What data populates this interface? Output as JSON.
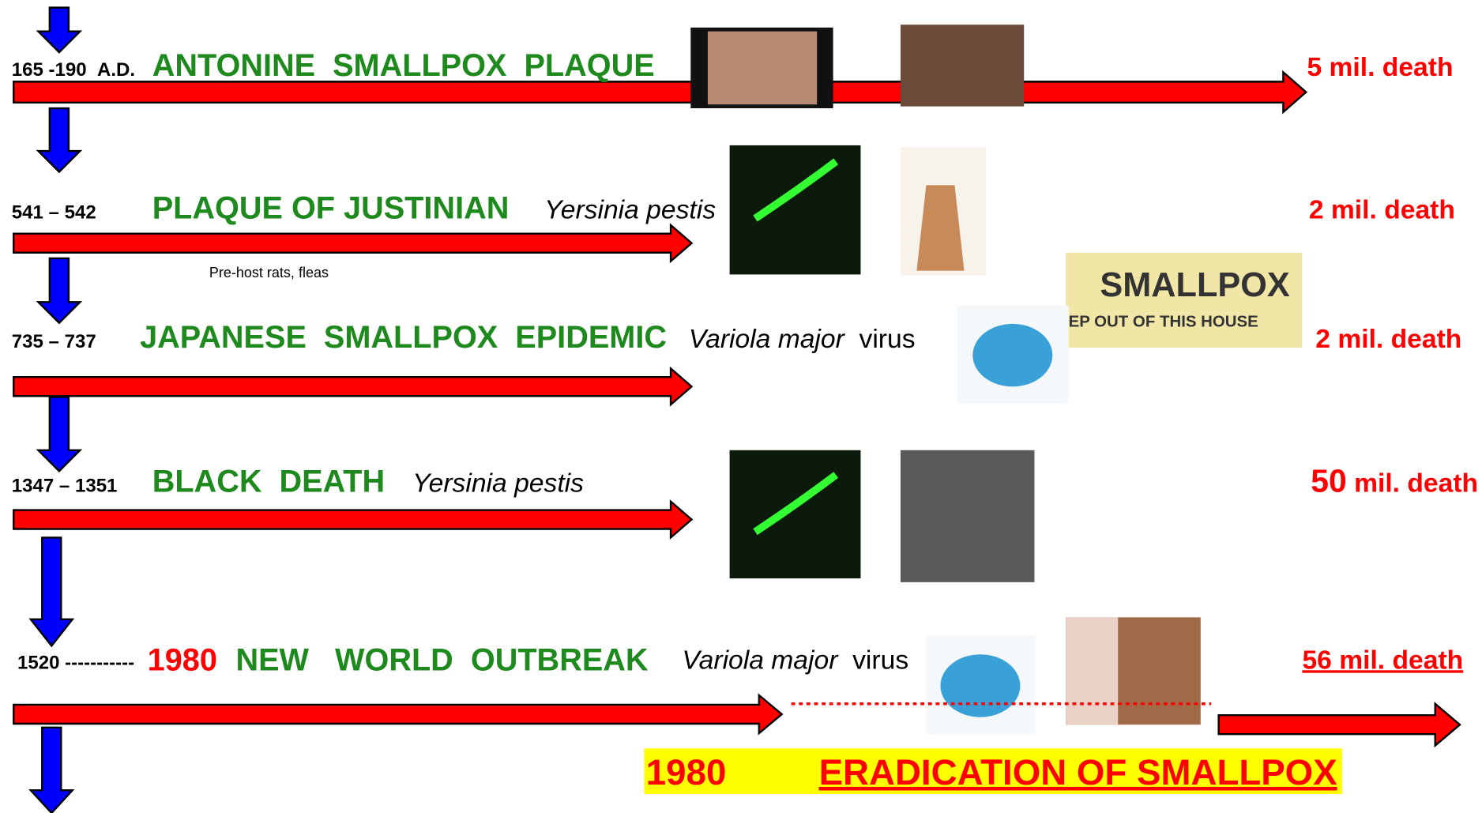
{
  "rows": [
    {
      "date": "165 -190",
      "era": "A.D.",
      "title": "ANTONINE  SMALLPOX  PLAQUE",
      "deaths": "5 mil. death"
    },
    {
      "date": "541 – 542",
      "title": "PLAQUE OF JUSTINIAN",
      "pathogen": "Yersinia pestis",
      "deaths": "2 mil. death",
      "note": "Pre-host rats, fleas"
    },
    {
      "date": "735 – 737",
      "title": "JAPANESE  SMALLPOX  EPIDEMIC",
      "pathogen": "Variola major",
      "pathogen_suffix": "virus",
      "deaths": "2 mil. death"
    },
    {
      "date": "1347 – 1351",
      "title": "BLACK  DEATH",
      "pathogen": "Yersinia pestis",
      "deaths_number": "50",
      "deaths_unit": "mil. death"
    },
    {
      "date": "1520 -----------",
      "date_end": "1980",
      "title": "NEW   WORLD  OUTBREAK",
      "pathogen": "Variola major",
      "pathogen_suffix": "virus",
      "deaths": "56 mil. death"
    }
  ],
  "eradication": {
    "year": "1980",
    "title": "ERADICATION OF SMALLPOX"
  },
  "poster": {
    "heading": "SMALLPOX",
    "subheading": "KEEP OUT OF THIS HOUSE"
  }
}
